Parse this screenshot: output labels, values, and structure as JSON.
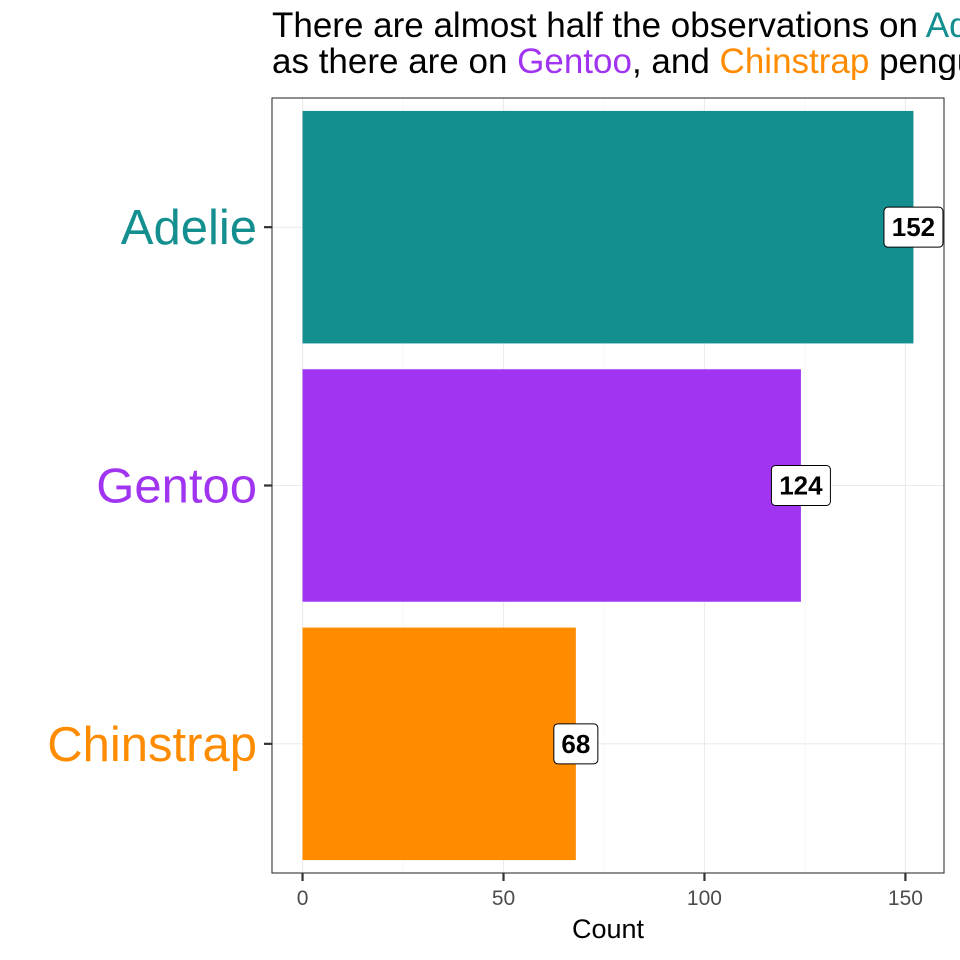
{
  "title": {
    "line1": [
      {
        "text": "There are almost half the observations on ",
        "color": "#000000"
      },
      {
        "text": "Adelie",
        "color": "#148F8F"
      }
    ],
    "line2": [
      {
        "text": "as there are on ",
        "color": "#000000"
      },
      {
        "text": "Gentoo",
        "color": "#A034F0"
      },
      {
        "text": ", and ",
        "color": "#000000"
      },
      {
        "text": "Chinstrap",
        "color": "#FF8C00"
      },
      {
        "text": " penguins",
        "color": "#000000"
      }
    ]
  },
  "chart_data": {
    "type": "bar",
    "orientation": "horizontal",
    "categories": [
      "Adelie",
      "Gentoo",
      "Chinstrap"
    ],
    "values": [
      152,
      124,
      68
    ],
    "data_labels": [
      "152",
      "124",
      "68"
    ],
    "colors": [
      "#148F8F",
      "#A034F0",
      "#FF8C00"
    ],
    "xlabel": "Count",
    "ylabel": "",
    "xlim": [
      -7.6,
      159.6
    ],
    "x_ticks": [
      0,
      50,
      100,
      150
    ],
    "grid": true,
    "legend": "none"
  }
}
